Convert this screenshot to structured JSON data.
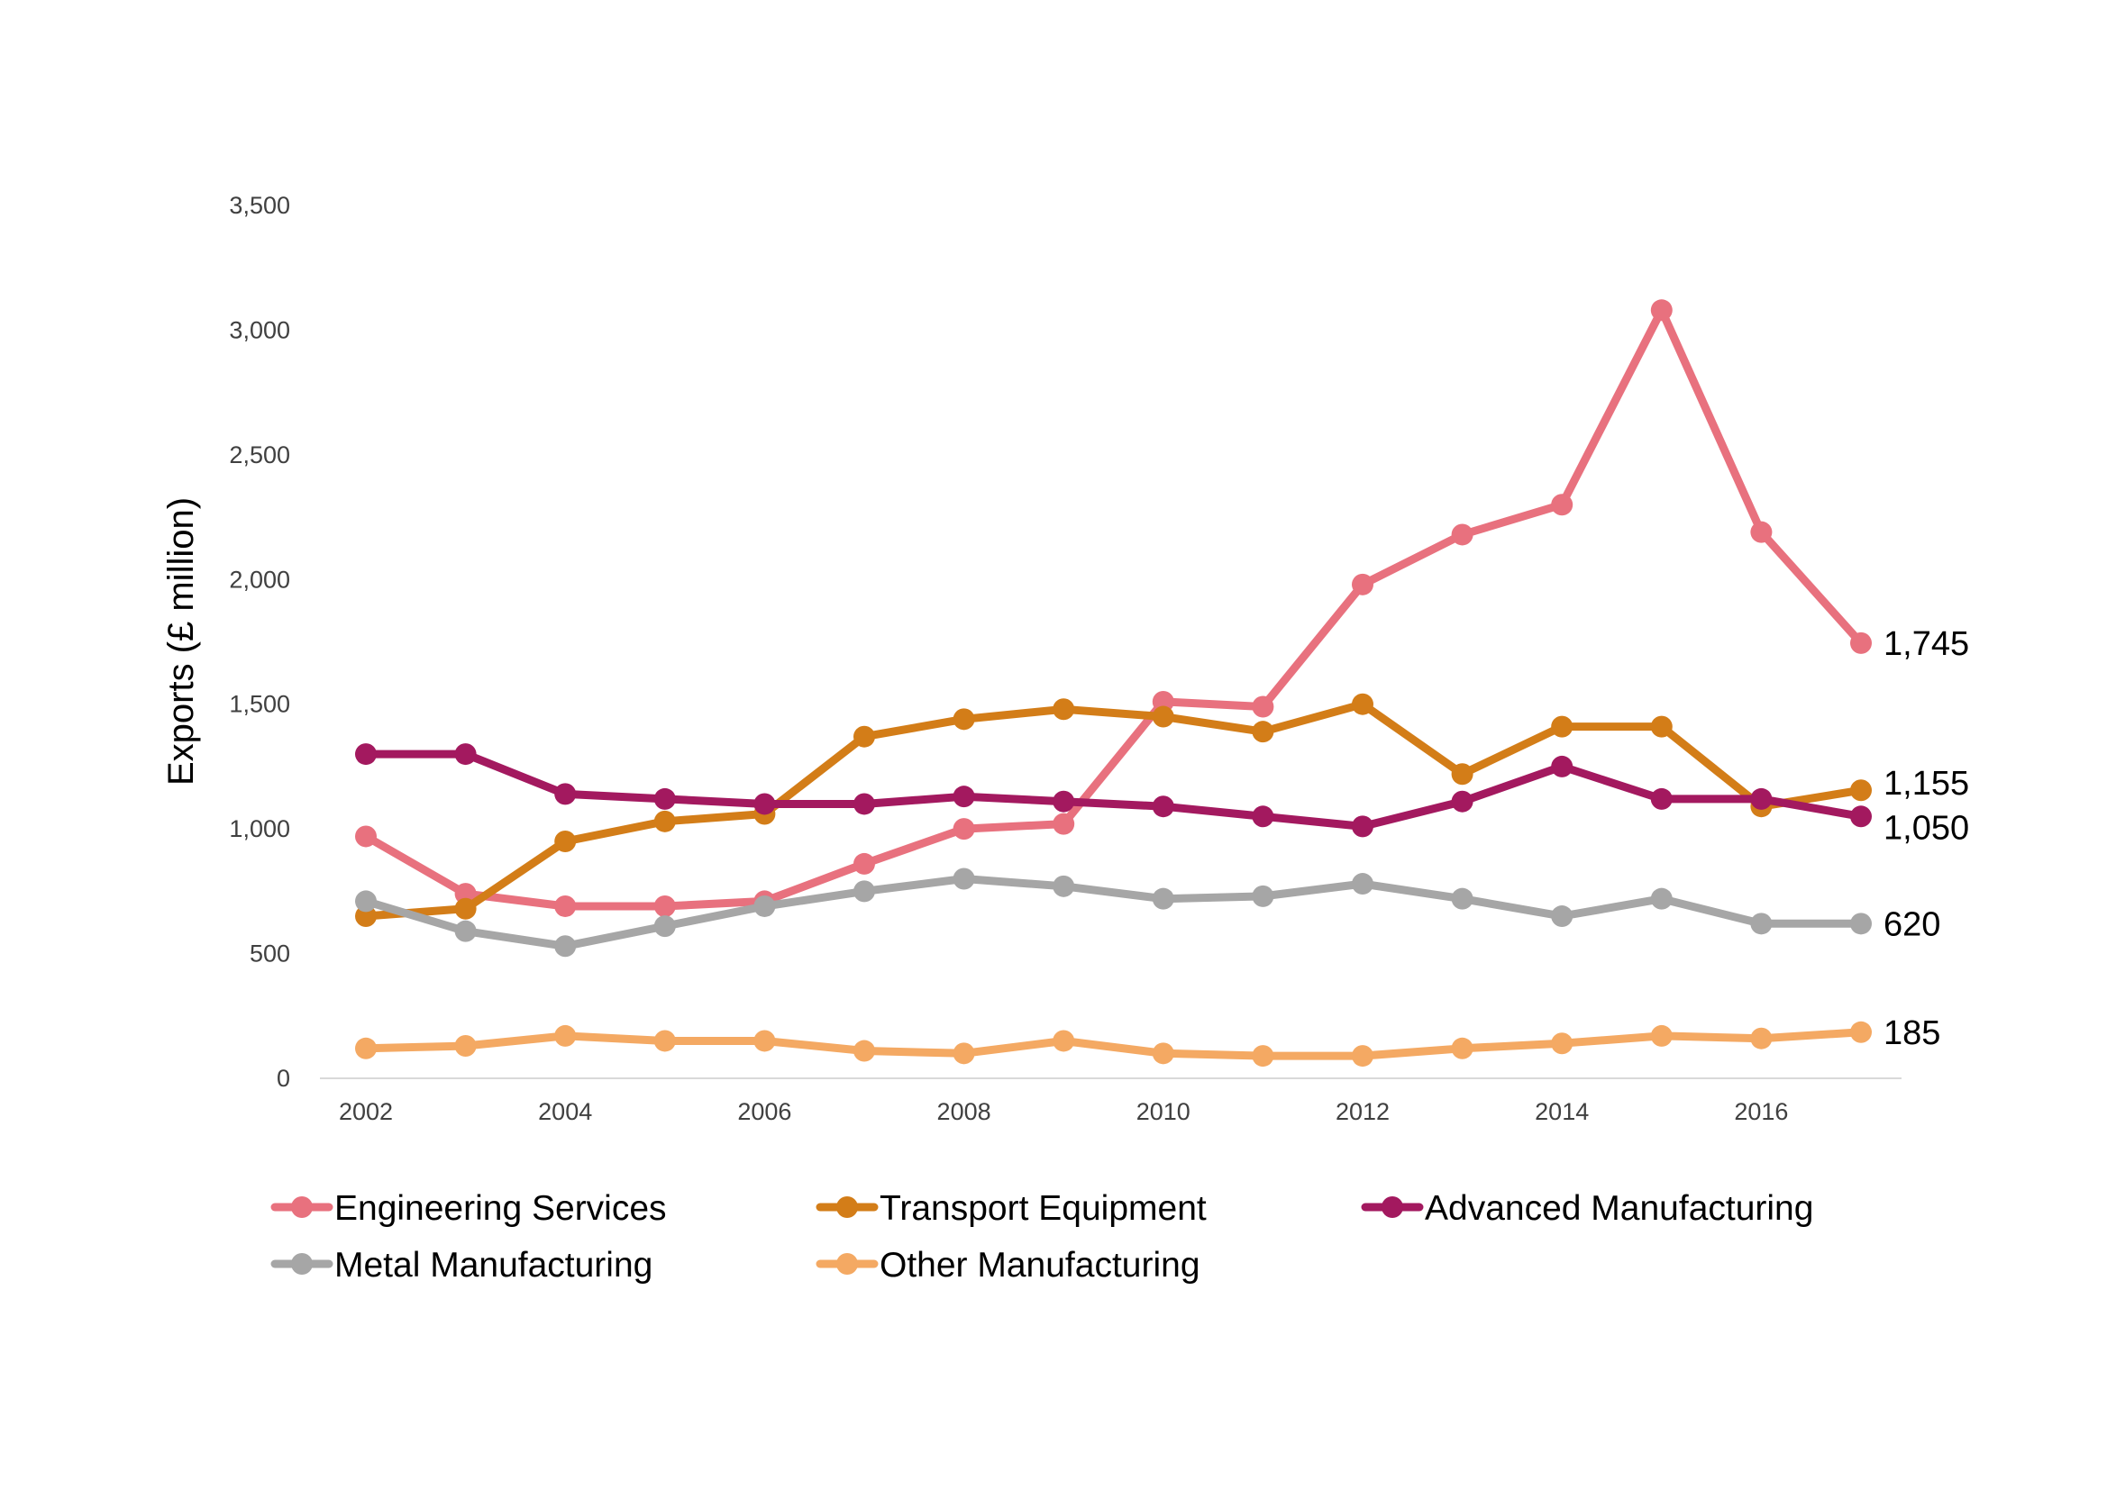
{
  "chart_data": {
    "type": "line",
    "title": "",
    "xlabel": "",
    "ylabel": "Exports (£ million)",
    "ylim": [
      0,
      3500
    ],
    "y_ticks": [
      {
        "value": 0,
        "label": "0"
      },
      {
        "value": 500,
        "label": "500"
      },
      {
        "value": 1000,
        "label": "1,000"
      },
      {
        "value": 1500,
        "label": "1,500"
      },
      {
        "value": 2000,
        "label": "2,000"
      },
      {
        "value": 2500,
        "label": "2,500"
      },
      {
        "value": 3000,
        "label": "3,000"
      },
      {
        "value": 3500,
        "label": "3,500"
      }
    ],
    "x": [
      2002,
      2003,
      2004,
      2005,
      2006,
      2007,
      2008,
      2009,
      2010,
      2011,
      2012,
      2013,
      2014,
      2015,
      2016,
      2017
    ],
    "x_ticks": [
      {
        "value": 2002,
        "label": "2002"
      },
      {
        "value": 2004,
        "label": "2004"
      },
      {
        "value": 2006,
        "label": "2006"
      },
      {
        "value": 2008,
        "label": "2008"
      },
      {
        "value": 2010,
        "label": "2010"
      },
      {
        "value": 2012,
        "label": "2012"
      },
      {
        "value": 2014,
        "label": "2014"
      },
      {
        "value": 2016,
        "label": "2016"
      }
    ],
    "grid": false,
    "legend_position": "bottom",
    "series": [
      {
        "name": "Engineering Services",
        "color": "#e8717e",
        "values": [
          970,
          740,
          690,
          690,
          710,
          860,
          1000,
          1020,
          1510,
          1490,
          1980,
          2180,
          2300,
          3080,
          2190,
          1745
        ],
        "end_label": "1,745"
      },
      {
        "name": "Transport Equipment",
        "color": "#d37d18",
        "values": [
          650,
          680,
          950,
          1030,
          1060,
          1370,
          1440,
          1480,
          1450,
          1390,
          1500,
          1220,
          1410,
          1410,
          1090,
          1155
        ],
        "end_label": "1,155"
      },
      {
        "name": "Advanced Manufacturing",
        "color": "#a3195f",
        "values": [
          1300,
          1300,
          1140,
          1120,
          1100,
          1100,
          1130,
          1110,
          1090,
          1050,
          1010,
          1110,
          1250,
          1120,
          1120,
          1050
        ],
        "end_label": "1,050"
      },
      {
        "name": "Metal Manufacturing",
        "color": "#a6a6a6",
        "values": [
          710,
          590,
          530,
          610,
          690,
          750,
          800,
          770,
          720,
          730,
          780,
          720,
          650,
          720,
          620,
          620
        ],
        "end_label": "620"
      },
      {
        "name": "Other Manufacturing",
        "color": "#f4a963",
        "values": [
          120,
          130,
          170,
          150,
          150,
          110,
          100,
          150,
          100,
          90,
          90,
          120,
          140,
          170,
          160,
          185
        ],
        "end_label": "185"
      }
    ]
  }
}
